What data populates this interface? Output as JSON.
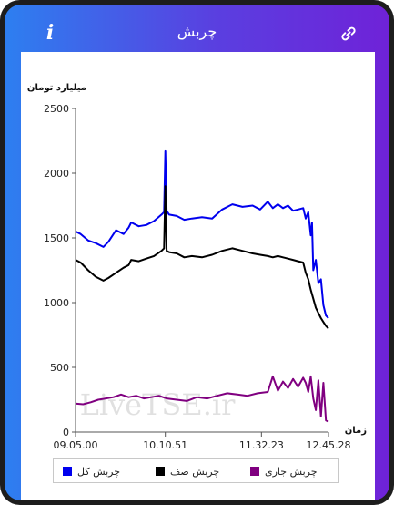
{
  "app": {
    "title": "چربش",
    "info_label": "i",
    "info_icon": "info-icon",
    "link_icon": "link-icon"
  },
  "watermark": "LiveTSE.ir",
  "colors": {
    "total": "#0000ee",
    "queue": "#000000",
    "current": "#800080"
  },
  "chart_data": {
    "type": "line",
    "ylabel": "میلیارد تومان",
    "xlabel": "زمان",
    "ylim": [
      0,
      2500
    ],
    "yticks": [
      0,
      500,
      1000,
      1500,
      2000,
      2500
    ],
    "xticks": [
      "09.05.00",
      "10.10.51",
      "11.32.23",
      "12.45.28"
    ],
    "xtick_positions": [
      0,
      0.355,
      0.735,
      1.0
    ],
    "legend_position": "bottom",
    "series": [
      {
        "name": "چربش کل",
        "color": "#0000ee",
        "x": [
          0,
          0.02,
          0.05,
          0.08,
          0.11,
          0.13,
          0.16,
          0.19,
          0.21,
          0.22,
          0.25,
          0.28,
          0.31,
          0.34,
          0.35,
          0.355,
          0.36,
          0.37,
          0.4,
          0.43,
          0.46,
          0.5,
          0.54,
          0.58,
          0.62,
          0.66,
          0.7,
          0.73,
          0.76,
          0.78,
          0.8,
          0.82,
          0.84,
          0.86,
          0.88,
          0.9,
          0.91,
          0.92,
          0.93,
          0.935,
          0.94,
          0.95,
          0.96,
          0.97,
          0.98,
          0.99,
          1.0
        ],
        "values": [
          1550,
          1530,
          1480,
          1460,
          1430,
          1470,
          1560,
          1530,
          1580,
          1620,
          1590,
          1600,
          1630,
          1680,
          1700,
          2170,
          1710,
          1680,
          1670,
          1640,
          1650,
          1660,
          1650,
          1720,
          1760,
          1740,
          1750,
          1720,
          1780,
          1730,
          1760,
          1730,
          1750,
          1710,
          1720,
          1730,
          1650,
          1700,
          1520,
          1620,
          1250,
          1330,
          1150,
          1180,
          980,
          900,
          880
        ]
      },
      {
        "name": "چربش صف",
        "color": "#000000",
        "x": [
          0,
          0.02,
          0.05,
          0.08,
          0.11,
          0.13,
          0.16,
          0.19,
          0.21,
          0.22,
          0.25,
          0.28,
          0.31,
          0.34,
          0.35,
          0.355,
          0.36,
          0.37,
          0.4,
          0.43,
          0.46,
          0.5,
          0.54,
          0.58,
          0.62,
          0.66,
          0.7,
          0.73,
          0.76,
          0.78,
          0.8,
          0.82,
          0.84,
          0.86,
          0.88,
          0.9,
          0.91,
          0.92,
          0.93,
          0.94,
          0.95,
          0.96,
          0.97,
          0.98,
          0.99,
          1.0
        ],
        "values": [
          1330,
          1310,
          1250,
          1200,
          1170,
          1190,
          1230,
          1270,
          1290,
          1330,
          1320,
          1340,
          1360,
          1400,
          1420,
          1900,
          1400,
          1390,
          1380,
          1350,
          1360,
          1350,
          1370,
          1400,
          1420,
          1400,
          1380,
          1370,
          1360,
          1350,
          1360,
          1350,
          1340,
          1330,
          1320,
          1310,
          1230,
          1180,
          1100,
          1030,
          960,
          920,
          880,
          850,
          820,
          800
        ]
      },
      {
        "name": "چربش جاری",
        "color": "#800080",
        "x": [
          0,
          0.03,
          0.06,
          0.09,
          0.12,
          0.15,
          0.18,
          0.21,
          0.24,
          0.27,
          0.3,
          0.33,
          0.36,
          0.4,
          0.44,
          0.48,
          0.52,
          0.56,
          0.6,
          0.64,
          0.68,
          0.72,
          0.76,
          0.78,
          0.8,
          0.82,
          0.84,
          0.86,
          0.88,
          0.9,
          0.91,
          0.92,
          0.93,
          0.94,
          0.95,
          0.96,
          0.97,
          0.98,
          0.99,
          1.0
        ],
        "values": [
          220,
          215,
          230,
          250,
          260,
          270,
          290,
          270,
          280,
          260,
          270,
          280,
          260,
          250,
          240,
          270,
          260,
          280,
          300,
          290,
          280,
          300,
          310,
          430,
          320,
          390,
          340,
          410,
          350,
          420,
          380,
          310,
          430,
          260,
          170,
          400,
          120,
          380,
          90,
          80
        ]
      }
    ]
  }
}
